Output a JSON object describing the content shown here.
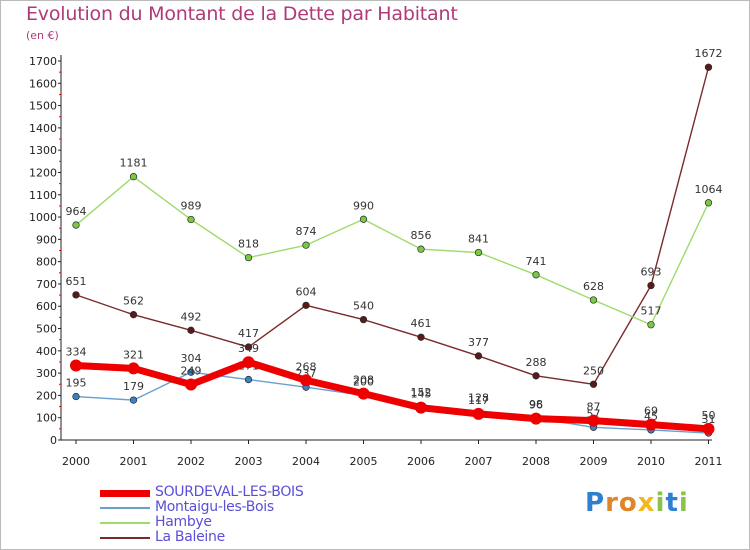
{
  "title": "Evolution du Montant de la Dette par Habitant",
  "subtitle": "(en €)",
  "brand": {
    "letters": [
      "P",
      "r",
      "o",
      "x",
      "i",
      "t",
      "i"
    ],
    "colors": [
      "#2f7fd0",
      "#e0862a",
      "#e0862a",
      "#f2b81f",
      "#8bc34a",
      "#2f7fd0",
      "#8bc34a"
    ]
  },
  "chart_data": {
    "type": "line",
    "x": [
      "2000",
      "2001",
      "2002",
      "2003",
      "2004",
      "2005",
      "2006",
      "2007",
      "2008",
      "2009",
      "2010",
      "2011"
    ],
    "ylim": [
      0,
      1700
    ],
    "yticks": [
      0,
      100,
      200,
      300,
      400,
      500,
      600,
      700,
      800,
      900,
      1000,
      1100,
      1200,
      1300,
      1400,
      1500,
      1600,
      1700
    ],
    "grid": false,
    "legend_position": "bottom-left",
    "series": [
      {
        "name": "La Baleine",
        "color": "#7a2a2a",
        "marker": "#5a1a1a",
        "values": [
          651,
          562,
          492,
          417,
          604,
          540,
          461,
          377,
          288,
          250,
          693,
          1672
        ],
        "labels": [
          "651",
          "562",
          "492",
          "417",
          "604",
          "540",
          "461",
          "377",
          "288",
          "250",
          "693",
          "1672"
        ]
      },
      {
        "name": "Hambye",
        "color": "#9edb6c",
        "marker": "#7ac943",
        "values": [
          964,
          1181,
          989,
          818,
          874,
          990,
          856,
          841,
          741,
          628,
          517,
          1064
        ],
        "labels": [
          "964",
          "1181",
          "989",
          "818",
          "874",
          "990",
          "856",
          "841",
          "741",
          "628",
          "517",
          "1064"
        ]
      },
      {
        "name": "Montaigu-les-Bois",
        "color": "#6a9fd0",
        "marker": "#3b82c4",
        "values": [
          195,
          179,
          304,
          271,
          237,
          200,
          152,
          128,
          98,
          57,
          45,
          31
        ],
        "labels": [
          "195",
          "179",
          "304",
          "271",
          "237",
          "200",
          "152",
          "128",
          "98",
          "57",
          "45",
          "31"
        ]
      },
      {
        "name": "SOURDEVAL-LES-BOIS",
        "color": "#ee0000",
        "marker": "#ee0000",
        "values": [
          334,
          321,
          249,
          349,
          268,
          208,
          145,
          117,
          96,
          87,
          69,
          50
        ],
        "labels": [
          "334",
          "321",
          "249",
          "349",
          "268",
          "208",
          "145",
          "117",
          "96",
          "87",
          "69",
          "50"
        ]
      }
    ]
  },
  "legend": {
    "items": [
      {
        "label": "SOURDEVAL-LES-BOIS",
        "color": "#ee0000",
        "thickness": 7
      },
      {
        "label": "Montaigu-les-Bois",
        "color": "#6a9fd0",
        "thickness": 2
      },
      {
        "label": "Hambye",
        "color": "#9edb6c",
        "thickness": 2
      },
      {
        "label": "La Baleine",
        "color": "#7a2a2a",
        "thickness": 2
      }
    ]
  }
}
